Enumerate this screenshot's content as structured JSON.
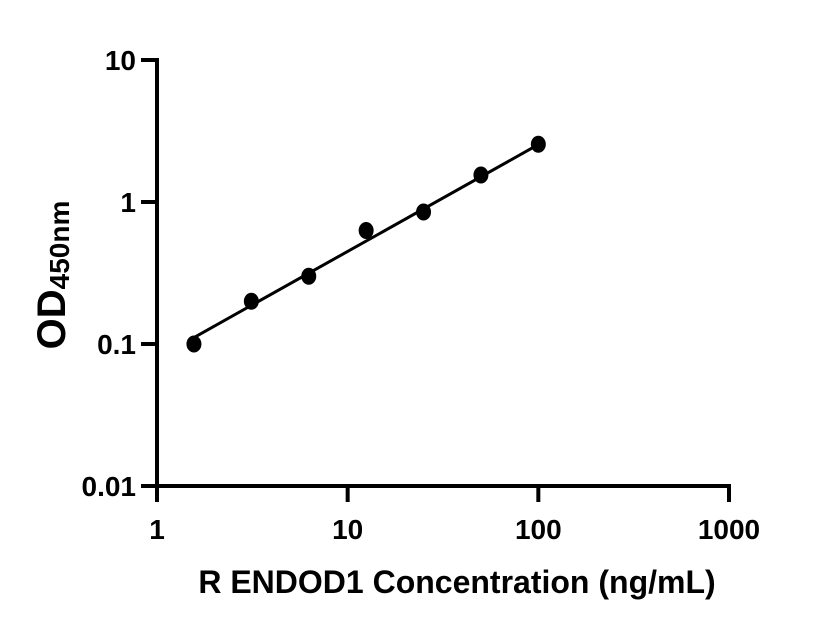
{
  "figure": {
    "background": "#ffffff"
  },
  "chart_data": {
    "type": "scatter",
    "title": "",
    "xlabel": "R ENDOD1 Concentration (ng/mL)",
    "ylabel_main": "OD",
    "ylabel_sub": "450nm",
    "x_scale": "log10",
    "y_scale": "log10",
    "xlim": [
      1,
      1000
    ],
    "ylim": [
      0.01,
      10
    ],
    "x_tick_labels": [
      "1",
      "10",
      "100",
      "1000"
    ],
    "y_tick_labels": [
      "0.01",
      "0.1",
      "1",
      "10"
    ],
    "grid": false,
    "legend": "none",
    "series": [
      {
        "name": "standard-curve-points",
        "marker": "filled-circle",
        "color": "#000000",
        "x": [
          1.5625,
          3.125,
          6.25,
          12.5,
          25,
          50,
          100
        ],
        "y": [
          0.1,
          0.2,
          0.3,
          0.63,
          0.85,
          1.55,
          2.55
        ]
      }
    ],
    "fit_line": {
      "color": "#000000",
      "x1": 1.58,
      "y1": 0.112,
      "x2": 97,
      "y2": 2.48
    },
    "axis_color": "#000000",
    "text_color": "#000000"
  }
}
